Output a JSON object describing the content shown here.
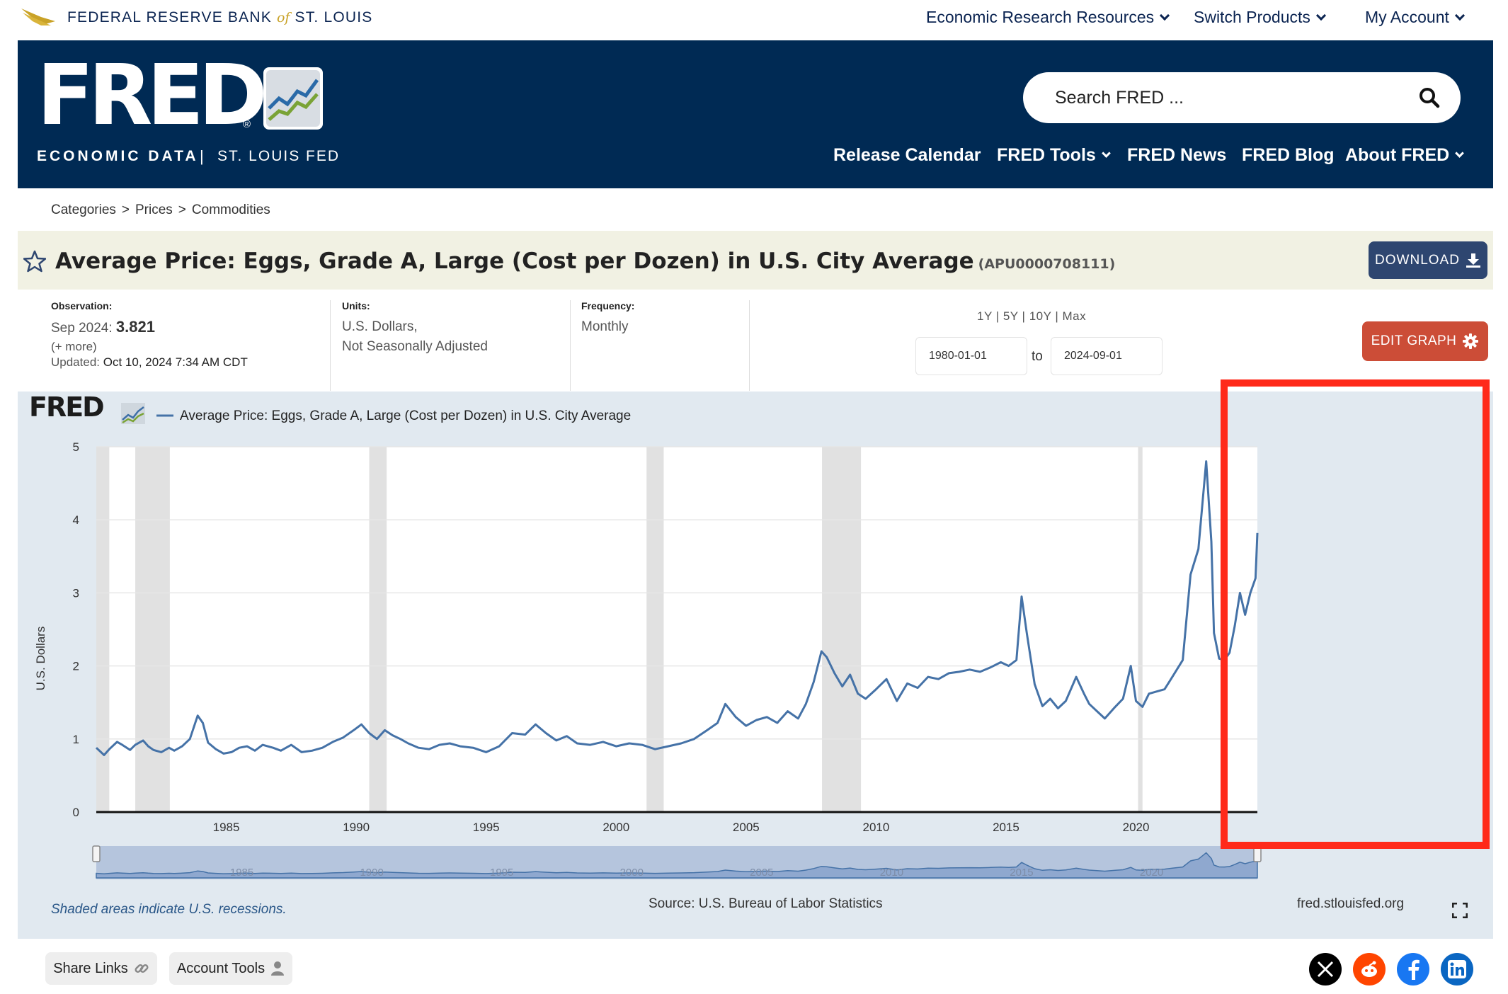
{
  "topbar": {
    "bank_name_left": "FEDERAL RESERVE BANK",
    "bank_name_of": "of",
    "bank_name_right": "ST. LOUIS",
    "nav": [
      "Economic Research Resources",
      "Switch Products",
      "My Account"
    ]
  },
  "header": {
    "logo_text": "FRED",
    "logo_reg": "®",
    "tagline_left": "ECONOMIC DATA",
    "tagline_sep": "|",
    "tagline_right": "ST. LOUIS FED",
    "search_placeholder": "Search FRED ...",
    "nav": [
      "Release Calendar",
      "FRED Tools",
      "FRED News",
      "FRED Blog",
      "About FRED"
    ]
  },
  "breadcrumb": [
    "Categories",
    ">",
    "Prices",
    ">",
    "Commodities"
  ],
  "series": {
    "title": "Average Price: Eggs, Grade A, Large (Cost per Dozen) in U.S. City Average",
    "id": "(APU0000708111)",
    "download_label": "DOWNLOAD"
  },
  "meta": {
    "observation_label": "Observation:",
    "observation_date": "Sep 2024:",
    "observation_value": "3.821",
    "more": "(+ more)",
    "updated_label": "Updated:",
    "updated_value": "Oct 10, 2024 7:34 AM CDT",
    "units_label": "Units:",
    "units_line1": "U.S. Dollars,",
    "units_line2": "Not Seasonally Adjusted",
    "frequency_label": "Frequency:",
    "frequency_value": "Monthly",
    "range_links": "1Y | 5Y | 10Y | Max",
    "date_from": "1980-01-01",
    "date_to_label": "to",
    "date_to": "2024-09-01",
    "edit_label": "EDIT GRAPH"
  },
  "graph": {
    "legend_logo": "FRED",
    "legend_series": "Average Price: Eggs, Grade A, Large (Cost per Dozen) in U.S. City Average",
    "recession_note": "Shaded areas indicate U.S. recessions.",
    "source": "Source: U.S. Bureau of Labor Statistics",
    "site": "fred.stlouisfed.org"
  },
  "footer": {
    "share_label": "Share Links",
    "account_label": "Account Tools"
  },
  "colors": {
    "navy": "#002a54",
    "line": "#4572a7",
    "recession": "#e1e1e1",
    "highlight": "#ff2a1a",
    "edit": "#cc4d37",
    "download": "#2e4670"
  },
  "chart_data": {
    "type": "line",
    "title": "Average Price: Eggs, Grade A, Large (Cost per Dozen) in U.S. City Average",
    "ylabel": "U.S. Dollars",
    "xlabel": "",
    "ylim": [
      0,
      5
    ],
    "xlim": [
      1980.0,
      2024.67
    ],
    "yticks": [
      0,
      1,
      2,
      3,
      4,
      5
    ],
    "xticks": [
      1985,
      1990,
      1995,
      2000,
      2005,
      2010,
      2015,
      2020
    ],
    "navigator_labels": [
      "1985",
      "1990",
      "1995",
      "2000",
      "2005",
      "2010",
      "2015",
      "2020"
    ],
    "grid": true,
    "legend_position": "top-left",
    "recessions": [
      [
        1980.0,
        1980.5
      ],
      [
        1981.5,
        1982.83
      ],
      [
        1990.5,
        1991.17
      ],
      [
        2001.17,
        2001.83
      ],
      [
        2007.92,
        2009.42
      ],
      [
        2020.08,
        2020.25
      ]
    ],
    "series": [
      {
        "name": "Average Price: Eggs, Grade A, Large (Cost per Dozen) in U.S. City Average",
        "x": [
          1980.0,
          1980.3,
          1980.5,
          1980.8,
          1981.0,
          1981.3,
          1981.5,
          1981.8,
          1982.0,
          1982.2,
          1982.5,
          1982.8,
          1983.0,
          1983.3,
          1983.6,
          1983.9,
          1984.1,
          1984.3,
          1984.6,
          1984.9,
          1985.2,
          1985.5,
          1985.8,
          1986.1,
          1986.4,
          1986.8,
          1987.1,
          1987.5,
          1987.9,
          1988.3,
          1988.7,
          1989.1,
          1989.5,
          1989.9,
          1990.2,
          1990.5,
          1990.8,
          1991.1,
          1991.4,
          1991.7,
          1992.0,
          1992.4,
          1992.8,
          1993.2,
          1993.6,
          1994.0,
          1994.5,
          1995.0,
          1995.5,
          1996.0,
          1996.5,
          1996.9,
          1997.3,
          1997.7,
          1998.1,
          1998.5,
          1999.0,
          1999.5,
          2000.0,
          2000.5,
          2001.0,
          2001.5,
          2002.0,
          2002.5,
          2003.0,
          2003.5,
          2003.9,
          2004.2,
          2004.6,
          2005.0,
          2005.4,
          2005.8,
          2006.2,
          2006.6,
          2007.0,
          2007.3,
          2007.6,
          2007.9,
          2008.1,
          2008.4,
          2008.7,
          2009.0,
          2009.3,
          2009.6,
          2010.0,
          2010.4,
          2010.8,
          2011.2,
          2011.6,
          2012.0,
          2012.4,
          2012.8,
          2013.2,
          2013.6,
          2014.0,
          2014.4,
          2014.8,
          2015.1,
          2015.4,
          2015.6,
          2015.8,
          2016.1,
          2016.4,
          2016.7,
          2017.0,
          2017.3,
          2017.7,
          2018.0,
          2018.2,
          2018.5,
          2018.8,
          2019.2,
          2019.5,
          2019.8,
          2020.0,
          2020.25,
          2020.5,
          2020.8,
          2021.1,
          2021.4,
          2021.8,
          2022.1,
          2022.4,
          2022.7,
          2022.9,
          2023.0,
          2023.2,
          2023.4,
          2023.6,
          2023.8,
          2024.0,
          2024.2,
          2024.4,
          2024.6,
          2024.67
        ],
        "values": [
          0.88,
          0.78,
          0.86,
          0.96,
          0.92,
          0.85,
          0.92,
          0.98,
          0.9,
          0.85,
          0.82,
          0.88,
          0.84,
          0.9,
          1.0,
          1.32,
          1.22,
          0.95,
          0.86,
          0.8,
          0.82,
          0.88,
          0.9,
          0.84,
          0.92,
          0.88,
          0.84,
          0.92,
          0.82,
          0.84,
          0.88,
          0.96,
          1.02,
          1.12,
          1.2,
          1.08,
          1.0,
          1.12,
          1.05,
          1.0,
          0.94,
          0.88,
          0.86,
          0.92,
          0.94,
          0.9,
          0.88,
          0.82,
          0.9,
          1.08,
          1.06,
          1.2,
          1.08,
          0.98,
          1.04,
          0.94,
          0.92,
          0.96,
          0.9,
          0.94,
          0.92,
          0.86,
          0.9,
          0.94,
          1.0,
          1.12,
          1.22,
          1.48,
          1.3,
          1.18,
          1.26,
          1.3,
          1.22,
          1.38,
          1.28,
          1.48,
          1.78,
          2.2,
          2.12,
          1.9,
          1.72,
          1.88,
          1.62,
          1.55,
          1.68,
          1.82,
          1.52,
          1.76,
          1.7,
          1.85,
          1.82,
          1.9,
          1.92,
          1.95,
          1.92,
          1.98,
          2.05,
          2.0,
          2.08,
          2.95,
          2.45,
          1.75,
          1.45,
          1.55,
          1.42,
          1.52,
          1.85,
          1.62,
          1.48,
          1.38,
          1.28,
          1.44,
          1.55,
          2.0,
          1.52,
          1.44,
          1.62,
          1.65,
          1.68,
          1.85,
          2.08,
          3.25,
          3.6,
          4.8,
          3.7,
          2.45,
          2.1,
          2.08,
          2.18,
          2.55,
          3.0,
          2.7,
          3.0,
          3.2,
          3.82
        ]
      }
    ]
  }
}
